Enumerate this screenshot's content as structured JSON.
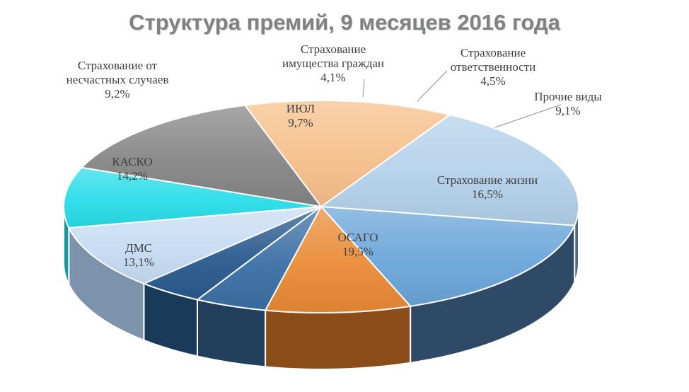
{
  "chart_data": {
    "type": "pie",
    "title": "Структура премий, 9 месяцев 2016 года",
    "slices": [
      {
        "lines": [
          "ОСАГО"
        ],
        "value_label": "19,5%",
        "value": 19.5,
        "top": "#b3d0ea",
        "side": "#4c6b8c"
      },
      {
        "lines": [
          "Страхование жизни"
        ],
        "value_label": "16,5%",
        "value": 16.5,
        "top": "#6aa5d9",
        "side": "#2e4a66"
      },
      {
        "lines": [
          "Прочие виды"
        ],
        "value_label": "9,1%",
        "value": 9.1,
        "top": "#ea8a36",
        "side": "#8a4c18"
      },
      {
        "lines": [
          "Страхование",
          "ответственности"
        ],
        "value_label": "4,5%",
        "value": 4.5,
        "top": "#3a6fa4",
        "side": "#223f5c"
      },
      {
        "lines": [
          "Страхование",
          "имущества граждан"
        ],
        "value_label": "4,1%",
        "value": 4.1,
        "top": "#295a8e",
        "side": "#1a3a5a"
      },
      {
        "lines": [
          "ИЮЛ"
        ],
        "value_label": "9,7%",
        "value": 9.7,
        "top": "#c6dcf3",
        "side": "#7d93ab"
      },
      {
        "lines": [
          "Страхование от",
          "несчастных случаев"
        ],
        "value_label": "9,2%",
        "value": 9.2,
        "top": "#28dde8",
        "side": "#159aa3"
      },
      {
        "lines": [
          "КАСКО"
        ],
        "value_label": "14,2%",
        "value": 14.2,
        "top": "#858585",
        "side": "#4a4a4a"
      },
      {
        "lines": [
          "ДМС"
        ],
        "value_label": "13,1%",
        "value": 13.1,
        "top": "#f6bf8a",
        "side": "#b07e5c"
      }
    ]
  }
}
